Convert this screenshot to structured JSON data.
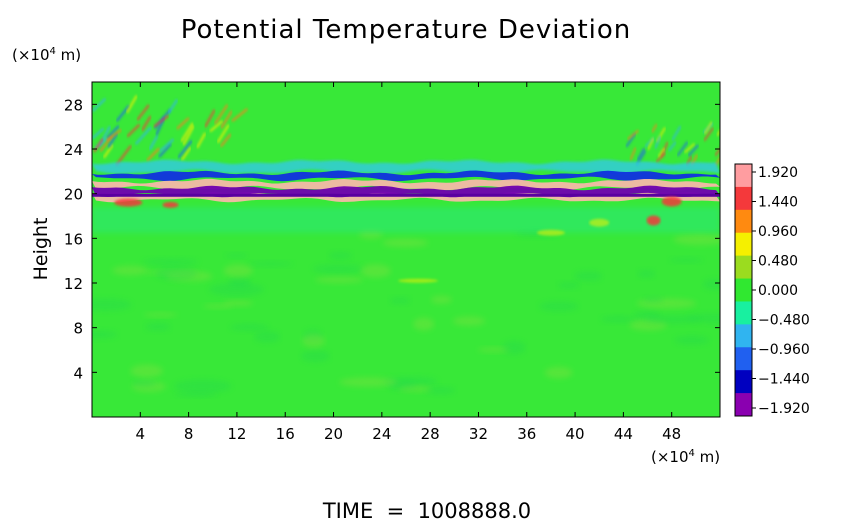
{
  "chart_data": {
    "type": "heatmap",
    "title": "Potential Temperature Deviation",
    "ylabel": "Height",
    "y_unit_label": "(×10",
    "y_unit_exp": "4",
    "y_unit_suffix": " m)",
    "x_unit_label": "(×10",
    "x_unit_exp": "4",
    "x_unit_suffix": " m)",
    "xlim": [
      0,
      52
    ],
    "ylim": [
      0,
      30
    ],
    "x_ticks": [
      "4",
      "8",
      "12",
      "16",
      "20",
      "24",
      "28",
      "32",
      "36",
      "40",
      "44",
      "48"
    ],
    "x_tick_values": [
      4,
      8,
      12,
      16,
      20,
      24,
      28,
      32,
      36,
      40,
      44,
      48
    ],
    "y_ticks": [
      "4",
      "8",
      "12",
      "16",
      "20",
      "24",
      "28"
    ],
    "y_tick_values": [
      4,
      8,
      12,
      16,
      20,
      24,
      28
    ],
    "colorbar": {
      "labels": [
        "1.920",
        "1.440",
        "0.960",
        "0.480",
        "0.000",
        "−0.480",
        "−0.960",
        "−1.440",
        "−1.920"
      ],
      "values": [
        1.92,
        1.44,
        0.96,
        0.48,
        0.0,
        -0.48,
        -0.96,
        -1.44,
        -1.92
      ],
      "colors": [
        "#ff9da0",
        "#f4393b",
        "#ff8a10",
        "#f5f000",
        "#9bdc1f",
        "#30e830",
        "#18f0a0",
        "#30b4f0",
        "#2060f0",
        "#0000c0",
        "#8a00b0"
      ]
    },
    "background_color": "#38e838",
    "bands": [
      {
        "name": "pink-layer-upper",
        "y": 20.8,
        "color": "#f5b8a8"
      },
      {
        "name": "purple-layer",
        "y": 20.2,
        "color": "#7000b0"
      },
      {
        "name": "pink-layer-lower",
        "y": 19.7,
        "color": "#f5b8a8"
      },
      {
        "name": "blue-layer-upper",
        "y": 21.6,
        "color": "#1030e0"
      },
      {
        "name": "cyan-layer",
        "y": 22.4,
        "color": "#30c8f0"
      }
    ],
    "footer": "TIME  =  1008888.0"
  }
}
